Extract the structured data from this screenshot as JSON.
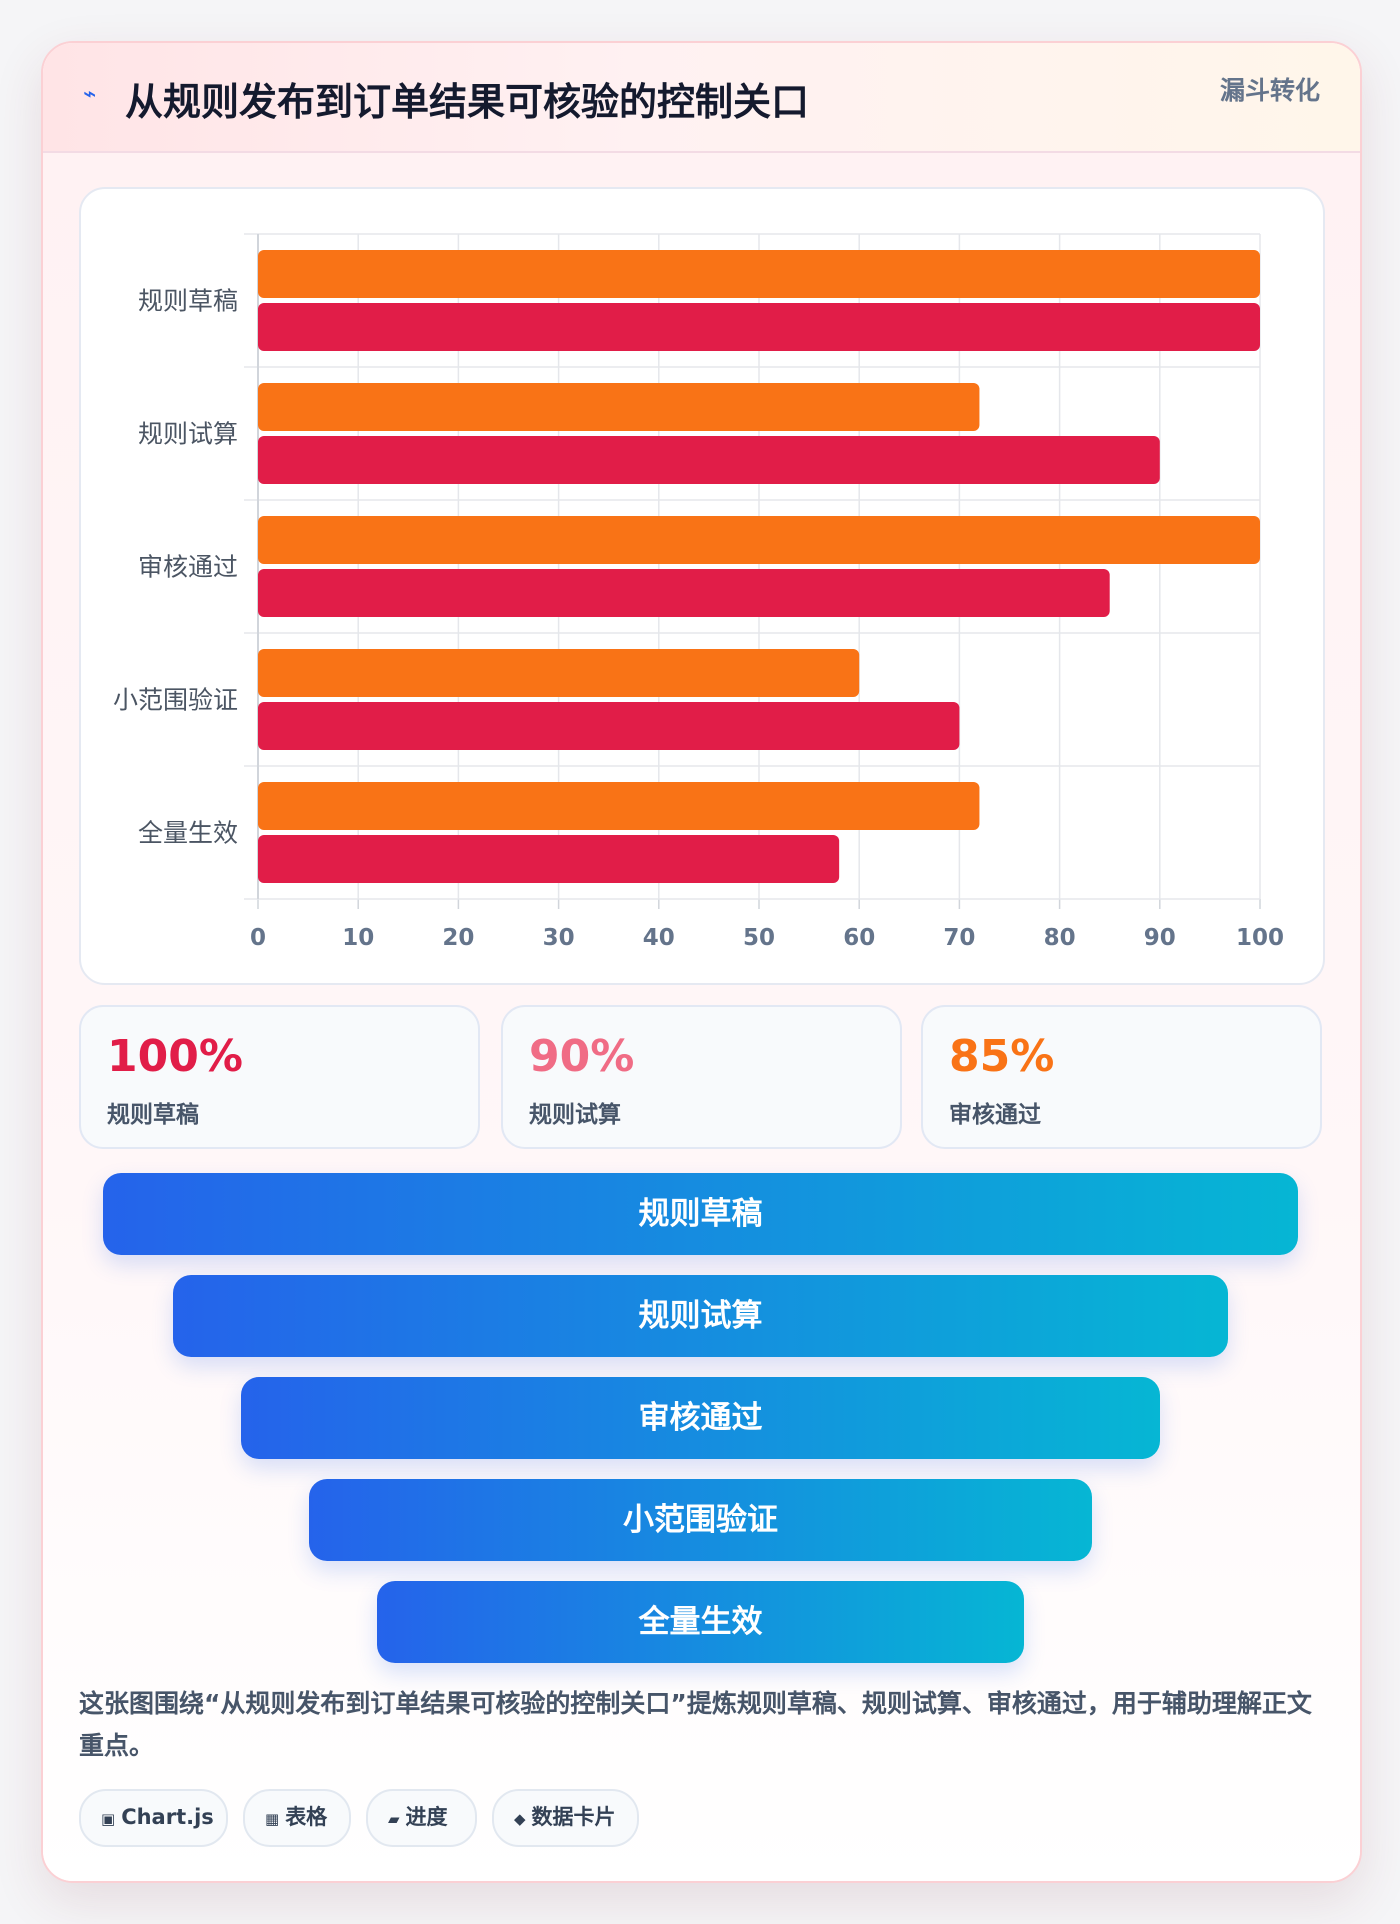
{
  "header": {
    "icon": "lightning-icon",
    "title": "从规则发布到订单结果可核验的控制关口",
    "badge": "漏斗转化"
  },
  "chart_data": {
    "type": "bar",
    "orientation": "horizontal",
    "categories": [
      "规则草稿",
      "规则试算",
      "审核通过",
      "小范围验证",
      "全量生效"
    ],
    "series": [
      {
        "values": [
          100,
          72,
          100,
          60,
          72
        ],
        "color": "#f97316"
      },
      {
        "values": [
          100,
          90,
          85,
          70,
          58
        ],
        "color": "#e11d48"
      }
    ],
    "xlim": [
      0,
      100
    ],
    "xticks": [
      "0",
      "10",
      "20",
      "30",
      "40",
      "50",
      "60",
      "70",
      "80",
      "90",
      "100"
    ],
    "grid": true,
    "legend": "none"
  },
  "stats": [
    {
      "value": "100%",
      "label": "规则草稿",
      "color": "#e11d48"
    },
    {
      "value": "90%",
      "label": "规则试算",
      "color": "#f06c85"
    },
    {
      "value": "85%",
      "label": "审核通过",
      "color": "#f97316"
    }
  ],
  "funnel": [
    "规则草稿",
    "规则试算",
    "审核通过",
    "小范围验证",
    "全量生效"
  ],
  "description": "这张图围绕“从规则发布到订单结果可核验的控制关口”提炼规则草稿、规则试算、审核通过，用于辅助理解正文重点。",
  "chips": [
    {
      "icon": "square-icon",
      "glyph": "▣",
      "label": "Chart.js"
    },
    {
      "icon": "table-icon",
      "glyph": "▦",
      "label": "表格"
    },
    {
      "icon": "progress-icon",
      "glyph": "▰",
      "label": "进度"
    },
    {
      "icon": "diamond-icon",
      "glyph": "◆",
      "label": "数据卡片"
    }
  ]
}
